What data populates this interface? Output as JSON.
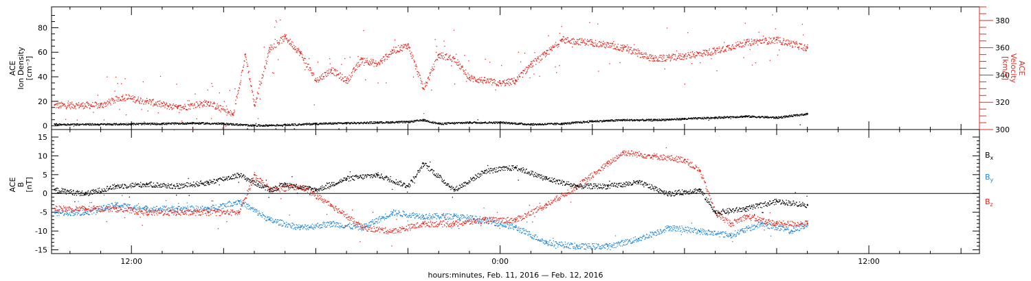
{
  "colors": {
    "black": "#000000",
    "red": "#e8261c",
    "blue": "#1a86d8"
  },
  "xaxis": {
    "title": "hours:minutes, Feb. 11, 2016 — Feb. 12, 2016",
    "ticklabels": [
      "12:00",
      "0:00",
      "12:00"
    ],
    "range_hours": [
      9.4,
      39.6
    ]
  },
  "chart_data": [
    {
      "type": "scatter",
      "panel": "plasma",
      "ylabel_left": [
        "ACE",
        "Ion Density",
        "[cm⁻³]"
      ],
      "ylabel_right": [
        "ACE",
        "Velocity",
        "[km/s]"
      ],
      "ylim_left": [
        -3,
        97
      ],
      "ylim_right": [
        300,
        390
      ],
      "yticks_left": [
        0,
        20,
        40,
        60,
        80
      ],
      "yticks_right": [
        300,
        320,
        340,
        360,
        380
      ],
      "series": [
        {
          "name": "Ion Density",
          "color": "black",
          "axis": "left",
          "x_hours": [
            9.5,
            11,
            12,
            13,
            14,
            15,
            16,
            17,
            18,
            19,
            20,
            21,
            21.5,
            22,
            23,
            24,
            25,
            26,
            27,
            28,
            29,
            30,
            31,
            32,
            33,
            34
          ],
          "y": [
            1.5,
            1.5,
            1.8,
            2,
            2.5,
            2,
            0.5,
            1,
            2,
            2.5,
            3,
            3.5,
            5,
            2,
            3,
            3,
            1.5,
            2,
            4,
            5,
            5,
            6,
            7,
            8,
            7,
            10
          ]
        },
        {
          "name": "Velocity",
          "color": "red",
          "axis": "right",
          "x_hours": [
            9.5,
            11,
            11.7,
            12.5,
            13.5,
            14.5,
            15.3,
            15.7,
            16,
            16.5,
            17,
            17.5,
            18,
            18.5,
            19,
            19.5,
            20,
            20.5,
            21,
            21.5,
            22,
            22.5,
            23,
            23.5,
            24,
            24.5,
            25,
            25.5,
            26,
            27,
            28,
            29,
            30,
            31,
            32,
            33,
            34
          ],
          "y": [
            318,
            318,
            324,
            321,
            316,
            320,
            311,
            355,
            318,
            360,
            368,
            356,
            336,
            344,
            336,
            352,
            348,
            358,
            362,
            330,
            355,
            352,
            338,
            336,
            334,
            336,
            348,
            356,
            366,
            364,
            360,
            352,
            354,
            358,
            364,
            366,
            360
          ]
        }
      ]
    },
    {
      "type": "scatter",
      "panel": "magnetic",
      "ylabel_left": [
        "ACE",
        "B",
        "[nT]"
      ],
      "ylim": [
        -16,
        17
      ],
      "yticks": [
        -15,
        -10,
        -5,
        0,
        5,
        10,
        15
      ],
      "zero_line": true,
      "legend": [
        {
          "label": "B",
          "sub": "x",
          "color": "black"
        },
        {
          "label": "B",
          "sub": "y",
          "color": "blue"
        },
        {
          "label": "B",
          "sub": "z",
          "color": "red"
        }
      ],
      "series": [
        {
          "name": "Bx",
          "color": "black",
          "x_hours": [
            9.5,
            10.5,
            11.5,
            12.5,
            13.5,
            14.5,
            15.5,
            16.5,
            17,
            18,
            19,
            20,
            21,
            21.5,
            22.5,
            23.5,
            24.5,
            25.5,
            26.5,
            27.5,
            28.5,
            29.5,
            30.5,
            31,
            32,
            33,
            34
          ],
          "y": [
            1,
            0,
            2,
            2.5,
            2,
            3,
            5,
            1,
            2.5,
            1,
            4,
            5,
            2,
            8,
            1,
            6,
            7,
            4,
            2,
            2,
            3,
            0,
            1,
            -5,
            -4,
            -2,
            -3
          ]
        },
        {
          "name": "By",
          "color": "blue",
          "x_hours": [
            9.5,
            10.5,
            11.5,
            12.5,
            13.5,
            14.5,
            15.5,
            16.5,
            17.5,
            18.5,
            19.5,
            20.5,
            21.5,
            22.5,
            23.5,
            24.5,
            25.5,
            26.5,
            27.5,
            28.5,
            29.5,
            30.5,
            31.5,
            32.5,
            33.5,
            34
          ],
          "y": [
            -5,
            -5,
            -3,
            -4,
            -4,
            -4,
            -2,
            -7,
            -9,
            -8,
            -9,
            -5,
            -6,
            -6,
            -7,
            -9,
            -13,
            -14,
            -14,
            -12,
            -9,
            -10,
            -11,
            -8,
            -10,
            -8
          ]
        },
        {
          "name": "Bz",
          "color": "red",
          "x_hours": [
            9.5,
            10.5,
            11.5,
            12.5,
            13.5,
            14.5,
            15.5,
            16,
            16.5,
            17.5,
            18.5,
            19.5,
            20.5,
            21.5,
            22.5,
            23.5,
            24.5,
            25.5,
            26.5,
            27.5,
            28,
            29,
            30,
            30.5,
            31,
            31.5,
            32,
            33,
            34
          ],
          "y": [
            -4,
            -4,
            -4,
            -5,
            -5,
            -5,
            -5,
            5,
            1,
            2,
            -3,
            -9,
            -10,
            -8,
            -8,
            -7,
            -7,
            -3,
            2,
            8,
            11,
            10,
            9,
            6,
            -5,
            -8,
            -6,
            -8,
            -8
          ]
        }
      ]
    }
  ]
}
